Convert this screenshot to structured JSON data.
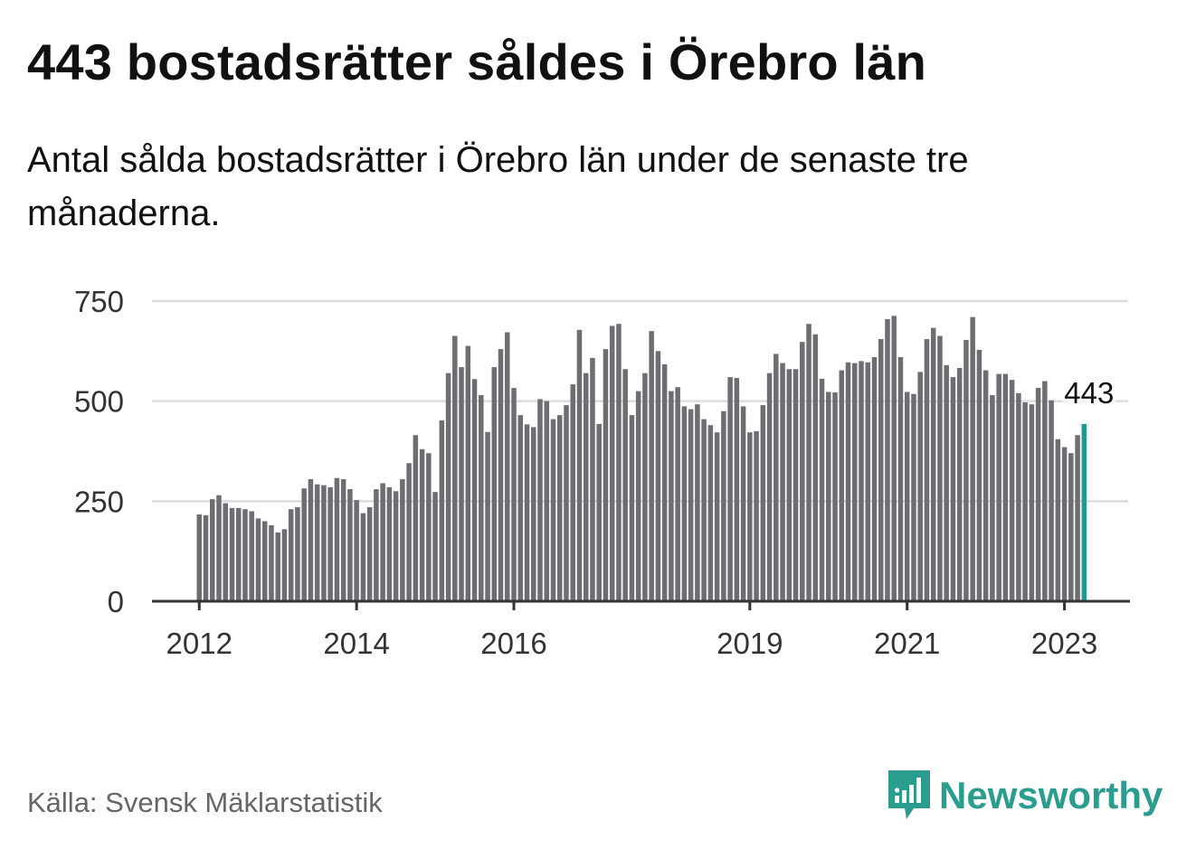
{
  "header": {
    "title": "443 bostadsrätter såldes i Örebro län",
    "subtitle": "Antal sålda bostadsrätter i Örebro län under de senaste tre månaderna."
  },
  "footer": {
    "source": "Källa: Svensk Mäklarstatistik",
    "brand": "Newsworthy"
  },
  "colors": {
    "bar": "#6e6d72",
    "highlight": "#1f9a91",
    "grid": "#dcdcdc",
    "axis": "#333333",
    "brand": "#2a9d8f"
  },
  "chart_data": {
    "type": "bar",
    "x_start": "2012-01",
    "x_step": "month",
    "ylim": [
      0,
      750
    ],
    "yticks": [
      0,
      250,
      500,
      750
    ],
    "xticks": [
      {
        "label": "2012",
        "x": "2012-01"
      },
      {
        "label": "2014",
        "x": "2014-01"
      },
      {
        "label": "2016",
        "x": "2016-01"
      },
      {
        "label": "2019",
        "x": "2019-01"
      },
      {
        "label": "2021",
        "x": "2021-01"
      },
      {
        "label": "2023",
        "x": "2023-01"
      }
    ],
    "grid": true,
    "highlight_label": "443",
    "values": [
      217,
      215,
      255,
      265,
      245,
      233,
      233,
      230,
      225,
      207,
      200,
      190,
      172,
      180,
      230,
      235,
      282,
      305,
      292,
      290,
      285,
      308,
      305,
      280,
      253,
      220,
      235,
      280,
      295,
      285,
      275,
      305,
      345,
      415,
      380,
      370,
      273,
      452,
      570,
      663,
      585,
      638,
      555,
      515,
      423,
      585,
      630,
      672,
      533,
      465,
      442,
      435,
      505,
      500,
      455,
      465,
      490,
      542,
      678,
      570,
      608,
      443,
      630,
      688,
      693,
      580,
      465,
      525,
      570,
      675,
      625,
      592,
      525,
      535,
      487,
      480,
      492,
      455,
      440,
      422,
      475,
      560,
      558,
      487,
      422,
      425,
      490,
      570,
      618,
      595,
      580,
      580,
      648,
      693,
      667,
      556,
      523,
      522,
      577,
      597,
      595,
      600,
      597,
      610,
      655,
      705,
      713,
      610,
      523,
      518,
      573,
      655,
      683,
      663,
      590,
      560,
      583,
      653,
      710,
      628,
      577,
      515,
      568,
      568,
      553,
      520,
      497,
      492,
      533,
      550,
      502,
      405,
      385,
      370,
      415,
      443
    ]
  }
}
